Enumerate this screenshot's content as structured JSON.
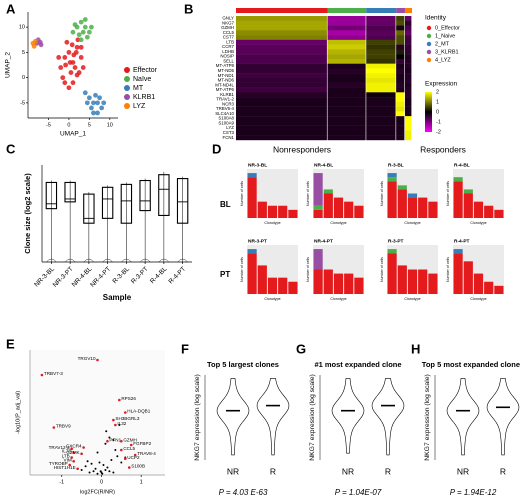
{
  "chart_data": [
    {
      "panel": "A",
      "type": "scatter",
      "xlabel": "UMAP_1",
      "ylabel": "UMAP_2",
      "xlim": [
        -10,
        12
      ],
      "ylim": [
        -8,
        13
      ],
      "xticks": [
        -5,
        0,
        5,
        10
      ],
      "yticks": [
        -5,
        0,
        5,
        10
      ],
      "series": [
        {
          "name": "Effector",
          "color": "#e41a1c",
          "x": [
            -2,
            -1,
            0,
            1,
            2,
            3,
            -1.5,
            0.5,
            1.5,
            2.5,
            -0.5,
            0.8,
            1.8,
            -2.5,
            3.5,
            0,
            1,
            2,
            -1,
            0.3,
            2.2,
            -0.8,
            1.2,
            3
          ],
          "y": [
            2,
            4,
            5,
            3,
            6,
            4,
            0,
            1,
            2,
            1,
            7,
            6.5,
            5,
            4,
            2,
            -2,
            -1,
            0.5,
            -1,
            3,
            7.5,
            2.5,
            4.5,
            6
          ]
        },
        {
          "name": "Naïve",
          "color": "#4daf4a",
          "x": [
            1,
            2,
            3,
            4,
            5,
            2.5,
            3.5,
            4.5,
            1.5,
            3,
            4,
            5.5
          ],
          "y": [
            9,
            10,
            11,
            10,
            9,
            8.5,
            9,
            8,
            10.5,
            7.5,
            11.5,
            10
          ]
        },
        {
          "name": "MT",
          "color": "#377eb8",
          "x": [
            4,
            5,
            6,
            7,
            8,
            5.5,
            6.5,
            7.5,
            4.5,
            6,
            7,
            8.5
          ],
          "y": [
            -3,
            -4,
            -5,
            -5,
            -6,
            -6,
            -3.5,
            -4,
            -5,
            -7,
            -7,
            -5
          ]
        },
        {
          "name": "KLRB1",
          "color": "#984ea3",
          "x": [
            -7.5,
            -7,
            -7.8,
            -6.8
          ],
          "y": [
            7.5,
            7,
            6.8,
            6.5
          ]
        },
        {
          "name": "LYZ",
          "color": "#ff7f00",
          "x": [
            -8.5,
            -8.8,
            -8.2
          ],
          "y": [
            6.2,
            6.8,
            7.2
          ]
        }
      ]
    },
    {
      "panel": "B",
      "type": "heatmap",
      "legend_title": "Identity",
      "colorbar_title": "Expression",
      "clusters": [
        "0_Effector",
        "1_Naive",
        "2_MT",
        "3_KLRB1",
        "4_LYZ"
      ],
      "colors": [
        "#e41a1c",
        "#4daf4a",
        "#377eb8",
        "#984ea3",
        "#ff7f00"
      ],
      "genes": [
        "GNLY",
        "NKG7",
        "GZMH",
        "CCL5",
        "CST7",
        "LTB",
        "CCR7",
        "LDHB",
        "NOSIP",
        "SELL",
        "MT-ATP8",
        "MT-ND5",
        "MT-ND1",
        "MT-ND6",
        "MT-ND4L",
        "MT-ATP6",
        "KLRB1",
        "TRAV1-2",
        "NCR3",
        "TRBV6-4",
        "SLC4A10",
        "S100A8",
        "S100A9",
        "LYZ",
        "CST3",
        "FCN1"
      ],
      "values": [
        [
          1.2,
          -1.2,
          -0.8,
          0.5,
          -0.8
        ],
        [
          1.3,
          -1.2,
          -0.8,
          0.6,
          -0.3
        ],
        [
          1.3,
          -0.9,
          -0.6,
          -0.2,
          -0.6
        ],
        [
          1.1,
          -1.3,
          -0.7,
          0.8,
          -0.8
        ],
        [
          1.0,
          -1.1,
          -0.6,
          0.6,
          -0.5
        ],
        [
          -0.8,
          1.5,
          0.5,
          0.6,
          -0.5
        ],
        [
          -0.7,
          1.6,
          0.4,
          -0.3,
          -0.4
        ],
        [
          -0.7,
          1.4,
          0.5,
          0.2,
          -0.4
        ],
        [
          -0.6,
          1.3,
          0.5,
          0,
          -0.3
        ],
        [
          -0.6,
          1.4,
          0.4,
          -0.4,
          -0.3
        ],
        [
          -0.4,
          -0.2,
          1.9,
          -0.2,
          -0.3
        ],
        [
          -0.4,
          -0.3,
          2,
          -0.3,
          -0.2
        ],
        [
          -0.5,
          -0.2,
          1.9,
          -0.2,
          -0.3
        ],
        [
          -0.4,
          -0.2,
          1.8,
          -0.2,
          -0.3
        ],
        [
          -0.4,
          -0.3,
          1.9,
          -0.3,
          -0.2
        ],
        [
          -0.5,
          -0.2,
          1.9,
          -0.2,
          -0.3
        ],
        [
          -0.3,
          -0.2,
          -0.1,
          2,
          -0.3
        ],
        [
          -0.2,
          -0.2,
          -0.2,
          2,
          -0.2
        ],
        [
          -0.2,
          -0.2,
          -0.2,
          1.9,
          -0.2
        ],
        [
          -0.2,
          -0.2,
          -0.2,
          1.8,
          -0.2
        ],
        [
          -0.2,
          -0.2,
          -0.2,
          2,
          -0.2
        ],
        [
          -0.2,
          -0.2,
          -0.2,
          -0.2,
          2
        ],
        [
          -0.2,
          -0.2,
          -0.2,
          -0.2,
          2
        ],
        [
          -0.2,
          -0.2,
          -0.2,
          -0.2,
          2
        ],
        [
          -0.2,
          -0.2,
          -0.2,
          -0.2,
          1.9
        ],
        [
          -0.2,
          -0.2,
          -0.2,
          -0.2,
          1.9
        ]
      ],
      "colorbar_lim": [
        -2,
        2
      ],
      "colorbar_ticks": [
        2,
        1,
        0,
        -1,
        -2
      ]
    },
    {
      "panel": "C",
      "type": "box",
      "ylabel": "Clone size (log2 scale)",
      "xlabel": "Sample",
      "categories": [
        "NR-3-BL",
        "NR-3-PT",
        "NR-4-BL",
        "NR-4-PT",
        "R-3-BL",
        "R-3-PT",
        "R-4-BL",
        "R-4-PT"
      ],
      "ylim": [
        0,
        10
      ],
      "whisker_low": [
        0,
        0,
        0,
        0,
        0,
        0,
        0,
        0
      ],
      "q1": [
        5.5,
        6.2,
        4.0,
        4.5,
        4.0,
        5.3,
        4.8,
        4.0
      ],
      "median": [
        6.0,
        6.5,
        4.5,
        6.5,
        6.3,
        6.3,
        7.5,
        6.2
      ],
      "q3": [
        8.2,
        8.2,
        7.0,
        7.7,
        8.0,
        8.4,
        9.0,
        8.6
      ],
      "whisker_high": [
        8.4,
        8.4,
        7.2,
        7.9,
        8.2,
        8.6,
        9.3,
        8.8
      ]
    },
    {
      "panel": "D",
      "type": "bar-grid",
      "column_groups": [
        "Nonresponders",
        "Responders"
      ],
      "row_labels": [
        "BL",
        "PT"
      ],
      "charts": [
        {
          "title": "NR-3-BL",
          "ylabel": "Number of cells",
          "xlabel": "Clonotype",
          "ylim": [
            0,
            12
          ],
          "series": [
            {
              "color": "#e41a1c",
              "values": [
                10,
                4,
                3,
                3,
                2
              ]
            },
            {
              "color": "#4daf4a",
              "values": [
                0,
                0,
                0,
                0,
                0
              ]
            },
            {
              "color": "#377eb8",
              "values": [
                1,
                0,
                0,
                0,
                0
              ]
            },
            {
              "color": "#984ea3",
              "values": [
                0,
                0,
                0,
                0,
                0
              ]
            }
          ]
        },
        {
          "title": "NR-4-BL",
          "ylabel": "Number of cells",
          "xlabel": "Clonotype",
          "ylim": [
            0,
            12
          ],
          "series": [
            {
              "color": "#e41a1c",
              "values": [
                2,
                6,
                5,
                4,
                3
              ]
            },
            {
              "color": "#4daf4a",
              "values": [
                1,
                1,
                0,
                0,
                0
              ]
            },
            {
              "color": "#377eb8",
              "values": [
                0,
                0,
                0,
                0,
                0
              ]
            },
            {
              "color": "#984ea3",
              "values": [
                8,
                0,
                0,
                0,
                0
              ]
            }
          ]
        },
        {
          "title": "R-3-BL",
          "ylabel": "Number of cells",
          "xlabel": "Clonotype",
          "ylim": [
            0,
            12
          ],
          "series": [
            {
              "color": "#e41a1c",
              "values": [
                9,
                7,
                5,
                5,
                4
              ]
            },
            {
              "color": "#4daf4a",
              "values": [
                1,
                1,
                0,
                0,
                0
              ]
            },
            {
              "color": "#377eb8",
              "values": [
                1,
                0,
                1,
                0,
                0
              ]
            },
            {
              "color": "#984ea3",
              "values": [
                0,
                0,
                0,
                0,
                0
              ]
            }
          ]
        },
        {
          "title": "R-4-BL",
          "ylabel": "Number of cells",
          "xlabel": "Clonotype",
          "ylim": [
            0,
            12
          ],
          "series": [
            {
              "color": "#e41a1c",
              "values": [
                9,
                6,
                4,
                3,
                2
              ]
            },
            {
              "color": "#4daf4a",
              "values": [
                1,
                1,
                0,
                0,
                0
              ]
            },
            {
              "color": "#377eb8",
              "values": [
                0,
                0,
                0,
                0,
                0
              ]
            },
            {
              "color": "#984ea3",
              "values": [
                0,
                0,
                0,
                0,
                0
              ]
            }
          ]
        },
        {
          "title": "NR-3-PT",
          "ylabel": "Number of cells",
          "xlabel": "Clonotype",
          "ylim": [
            0,
            12
          ],
          "series": [
            {
              "color": "#e41a1c",
              "values": [
                10,
                7,
                4,
                4,
                3
              ]
            },
            {
              "color": "#4daf4a",
              "values": [
                0,
                0,
                0,
                0,
                0
              ]
            },
            {
              "color": "#377eb8",
              "values": [
                1,
                0,
                0,
                0,
                0
              ]
            },
            {
              "color": "#984ea3",
              "values": [
                0,
                0,
                0,
                0,
                0
              ]
            }
          ]
        },
        {
          "title": "NR-4-PT",
          "ylabel": "Number of cells",
          "xlabel": "Clonotype",
          "ylim": [
            0,
            12
          ],
          "series": [
            {
              "color": "#e41a1c",
              "values": [
                6,
                6,
                5,
                5,
                4
              ]
            },
            {
              "color": "#4daf4a",
              "values": [
                0,
                0,
                0,
                0,
                0
              ]
            },
            {
              "color": "#377eb8",
              "values": [
                0,
                0,
                0,
                0,
                0
              ]
            },
            {
              "color": "#984ea3",
              "values": [
                5,
                0,
                0,
                0,
                0
              ]
            }
          ]
        },
        {
          "title": "R-3-PT",
          "ylabel": "Number of cells",
          "xlabel": "Clonotype",
          "ylim": [
            0,
            12
          ],
          "series": [
            {
              "color": "#e41a1c",
              "values": [
                10,
                7,
                6,
                6,
                5
              ]
            },
            {
              "color": "#4daf4a",
              "values": [
                1,
                0,
                0,
                0,
                0
              ]
            },
            {
              "color": "#377eb8",
              "values": [
                0,
                0,
                0,
                0,
                0
              ]
            },
            {
              "color": "#984ea3",
              "values": [
                0,
                0,
                0,
                0,
                0
              ]
            }
          ]
        },
        {
          "title": "R-4-PT",
          "ylabel": "Number of cells",
          "xlabel": "Clonotype",
          "ylim": [
            0,
            12
          ],
          "series": [
            {
              "color": "#e41a1c",
              "values": [
                10,
                8,
                5,
                3,
                2
              ]
            },
            {
              "color": "#4daf4a",
              "values": [
                0,
                0,
                0,
                0,
                0
              ]
            },
            {
              "color": "#377eb8",
              "values": [
                1,
                0,
                0,
                0,
                0
              ]
            },
            {
              "color": "#984ea3",
              "values": [
                0,
                0,
                0,
                0,
                0
              ]
            }
          ]
        }
      ]
    },
    {
      "panel": "E",
      "type": "volcano",
      "xlabel": "log2FC(R/NR)",
      "ylabel": "-log10(P_adj_val)",
      "xlim": [
        -1.8,
        1.6
      ],
      "ylim": [
        0,
        100
      ],
      "xticks": [
        -1,
        0,
        1
      ],
      "point_color": "#000000",
      "gene_color": "#e41a1c",
      "points": {
        "x": [
          -0.3,
          -0.2,
          -0.1,
          0,
          0.1,
          0.2,
          0.3,
          0.15,
          -0.15,
          0.05,
          -0.05,
          0.25,
          -0.25,
          0.4,
          -0.4,
          0.35,
          0.1,
          -0.1,
          0.2,
          0.5,
          -0.5,
          0.6,
          0.02,
          -0.02,
          0.12,
          0.3,
          0.45,
          -0.35
        ],
        "y": [
          2,
          3,
          1,
          2,
          4,
          3,
          2,
          6,
          5,
          8,
          10,
          12,
          9,
          15,
          7,
          20,
          25,
          18,
          30,
          10,
          4,
          14,
          1,
          3,
          35,
          28,
          40,
          11
        ]
      },
      "genes": {
        "labels": [
          "TRGV10",
          "TRBV7-3",
          "RPS26",
          "HLA-DQB1",
          "SH3BGRL3",
          "IL32",
          "TRBV9",
          "PFN1",
          "GZMH",
          "FGFBP2",
          "CXCR4",
          "TRAV12-2",
          "IL7R",
          "GZMK",
          "CCL5",
          "TRAV8-4",
          "LTB",
          "VIM",
          "TYROBP",
          "HIST1H1E",
          "UCP2",
          "S100B"
        ],
        "x": [
          -0.1,
          -1.5,
          0.45,
          0.6,
          0.3,
          0.35,
          -1.2,
          0.15,
          0.5,
          0.75,
          -0.45,
          -0.75,
          -0.7,
          -0.5,
          0.5,
          0.85,
          -0.75,
          -0.7,
          -0.8,
          -0.6,
          0.6,
          0.7
        ],
        "y": [
          92,
          80,
          60,
          50,
          44,
          40,
          38,
          27,
          27,
          24,
          22,
          21,
          18,
          17,
          20,
          16,
          14,
          11,
          8,
          5,
          13,
          6
        ]
      }
    },
    {
      "panel": "F",
      "type": "violin",
      "title": "Top 5 largest clones",
      "ylabel": "NKG7 expression (log scale)",
      "categories": [
        "NR",
        "R"
      ],
      "ylim": [
        0,
        5
      ],
      "min": [
        0.3,
        0.3
      ],
      "median": [
        2.9,
        3.2
      ],
      "max": [
        4.8,
        4.8
      ],
      "p_text": "P = 4.03 E-63"
    },
    {
      "panel": "G",
      "type": "violin",
      "title": "#1 most expanded clone",
      "ylabel": "NKG7 expression (log scale)",
      "categories": [
        "NR",
        "R"
      ],
      "ylim": [
        0,
        5
      ],
      "min": [
        0.4,
        0.3
      ],
      "median": [
        2.9,
        3.2
      ],
      "max": [
        4.8,
        4.8
      ],
      "p_text": "P = 1.04E-07"
    },
    {
      "panel": "H",
      "type": "violin",
      "title": "Top 5 most expanded clones",
      "ylabel": "NKG7 expression (log scale)",
      "categories": [
        "NR",
        "R"
      ],
      "ylim": [
        0,
        5
      ],
      "min": [
        0.3,
        0.3
      ],
      "median": [
        2.9,
        3.1
      ],
      "max": [
        4.8,
        4.8
      ],
      "p_text": "P = 1.94E-12"
    }
  ]
}
